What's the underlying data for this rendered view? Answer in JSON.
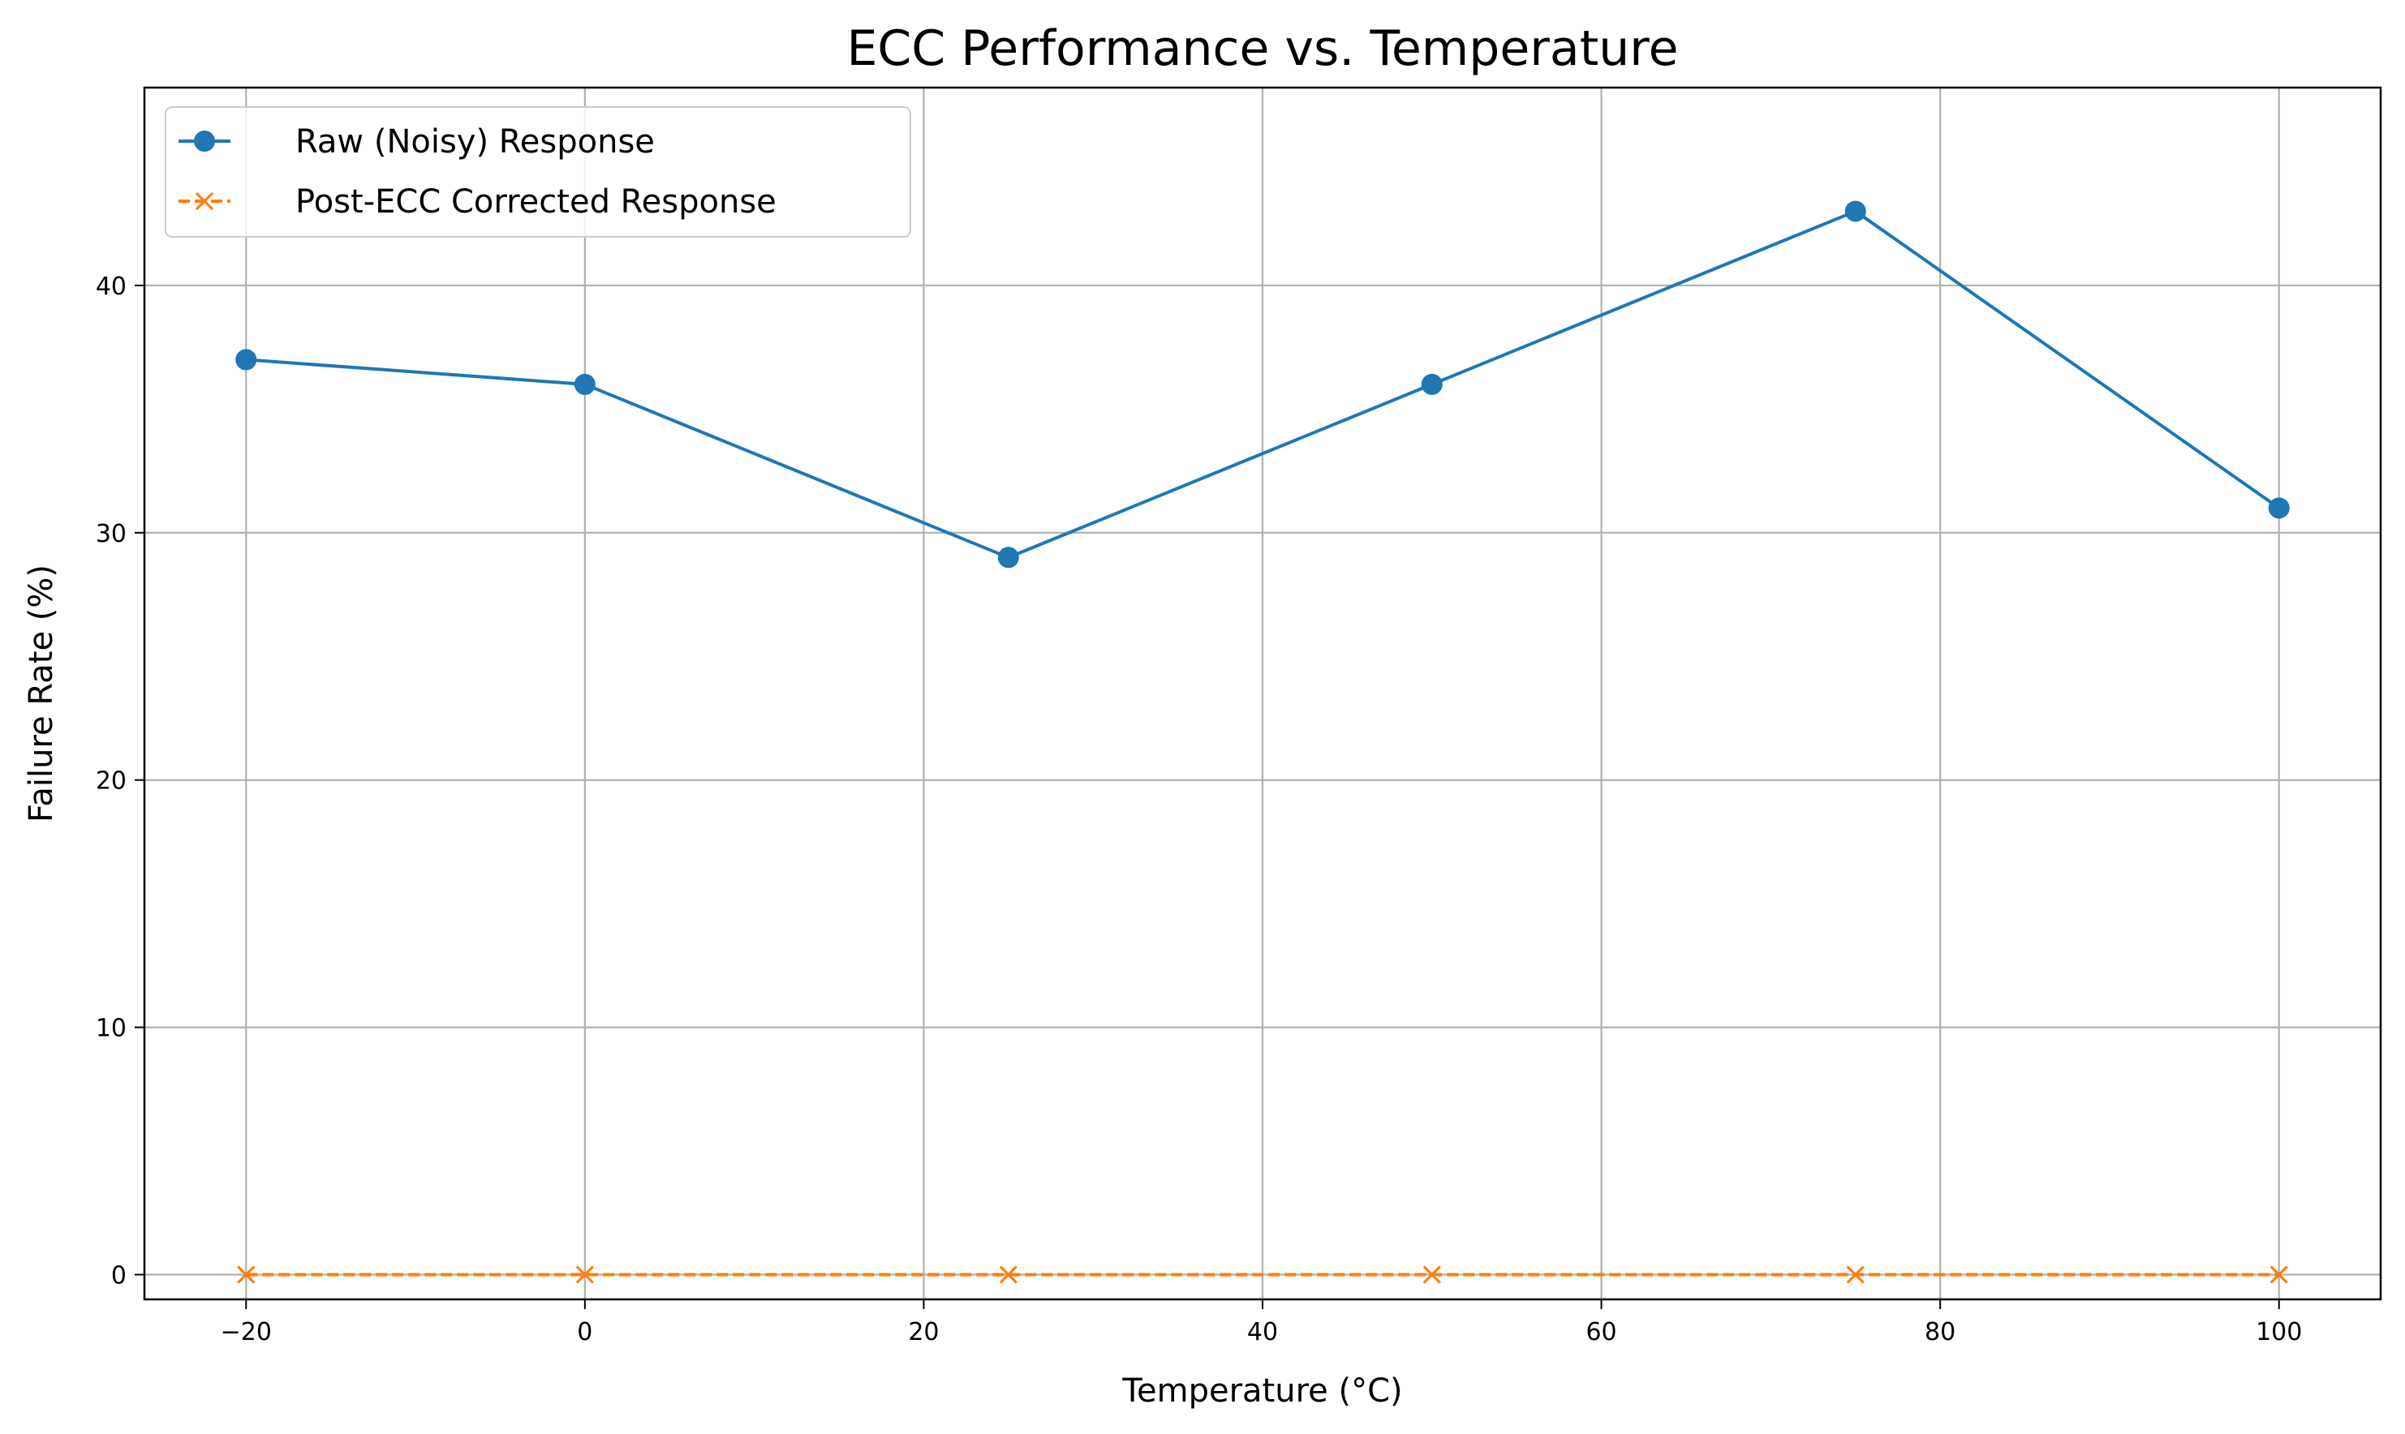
{
  "chart_data": {
    "type": "line",
    "title": "ECC Performance vs. Temperature",
    "xlabel": "Temperature (°C)",
    "ylabel": "Failure Rate (%)",
    "xlim": [
      -26,
      106
    ],
    "ylim": [
      -1,
      48
    ],
    "x_ticks": [
      -20,
      0,
      20,
      40,
      60,
      80,
      100
    ],
    "x_tick_labels": [
      "−20",
      "0",
      "20",
      "40",
      "60",
      "80",
      "100"
    ],
    "y_ticks": [
      0,
      10,
      20,
      30,
      40
    ],
    "y_tick_labels": [
      "0",
      "10",
      "20",
      "30",
      "40"
    ],
    "grid": true,
    "legend_position": "top-left",
    "x": [
      -20,
      0,
      25,
      50,
      75,
      100
    ],
    "series": [
      {
        "name": "Raw (Noisy) Response",
        "values": [
          37,
          36,
          29,
          36,
          43,
          31
        ],
        "color": "#1f77b4",
        "marker": "circle",
        "line_style": "solid"
      },
      {
        "name": "Post-ECC Corrected Response",
        "values": [
          0,
          0,
          0,
          0,
          0,
          0
        ],
        "color": "#ff7f0e",
        "marker": "x",
        "line_style": "dashed"
      }
    ]
  }
}
